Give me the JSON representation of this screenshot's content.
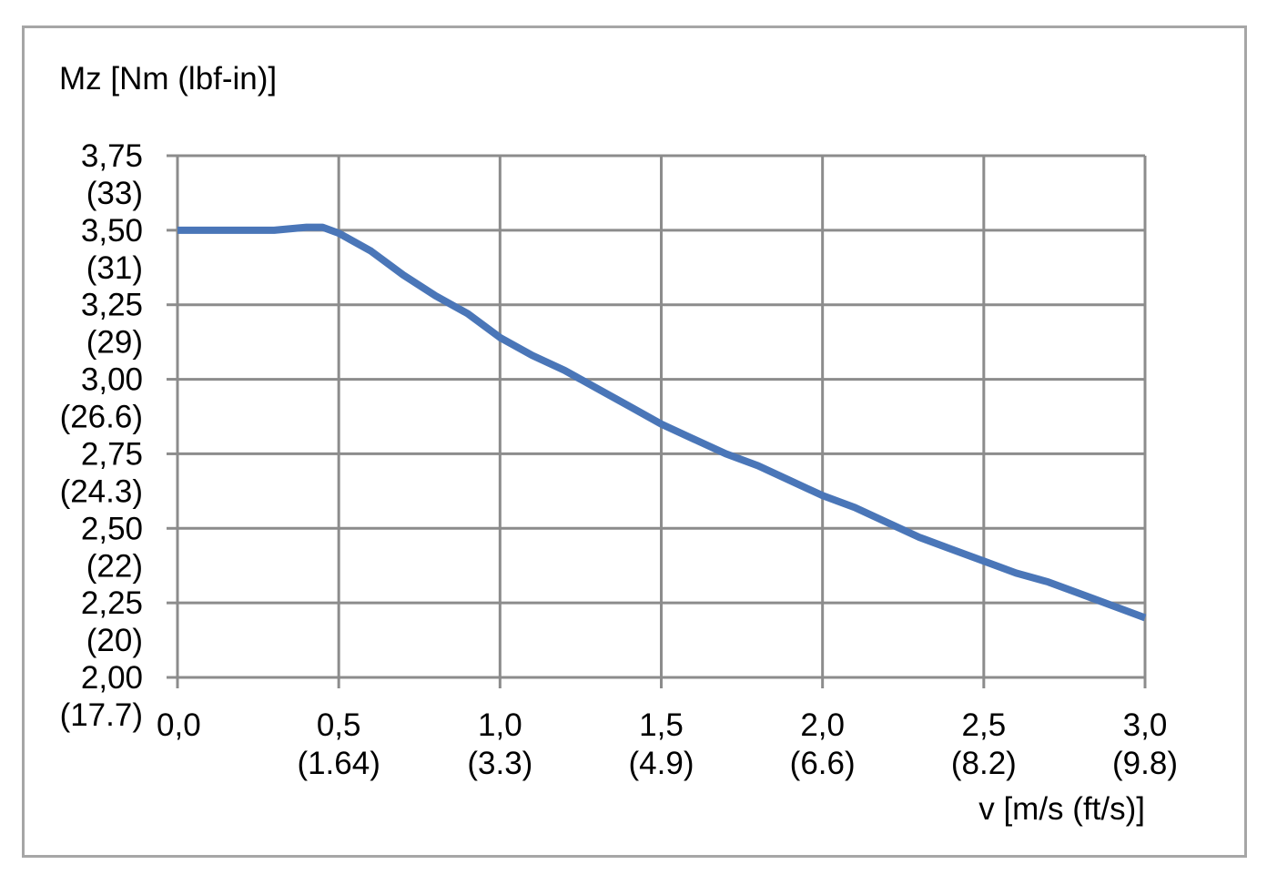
{
  "chart_data": {
    "type": "line",
    "ylabel": "Mz [Nm (lbf-in)]",
    "xlabel": "v [m/s (ft/s)]",
    "xlim": [
      0,
      3.0
    ],
    "ylim": [
      2.0,
      3.75
    ],
    "grid": true,
    "x_ticks": [
      {
        "value": 0.0,
        "label": "0,0",
        "sublabel": ""
      },
      {
        "value": 0.5,
        "label": "0,5",
        "sublabel": "(1.64)"
      },
      {
        "value": 1.0,
        "label": "1,0",
        "sublabel": "(3.3)"
      },
      {
        "value": 1.5,
        "label": "1,5",
        "sublabel": "(4.9)"
      },
      {
        "value": 2.0,
        "label": "2,0",
        "sublabel": "(6.6)"
      },
      {
        "value": 2.5,
        "label": "2,5",
        "sublabel": "(8.2)"
      },
      {
        "value": 3.0,
        "label": "3,0",
        "sublabel": "(9.8)"
      }
    ],
    "y_ticks": [
      {
        "value": 3.75,
        "label": "3,75",
        "sublabel": "(33)"
      },
      {
        "value": 3.5,
        "label": "3,50",
        "sublabel": "(31)"
      },
      {
        "value": 3.25,
        "label": "3,25",
        "sublabel": "(29)"
      },
      {
        "value": 3.0,
        "label": "3,00",
        "sublabel": "(26.6)"
      },
      {
        "value": 2.75,
        "label": "2,75",
        "sublabel": "(24.3)"
      },
      {
        "value": 2.5,
        "label": "2,50",
        "sublabel": "(22)"
      },
      {
        "value": 2.25,
        "label": "2,25",
        "sublabel": "(20)"
      },
      {
        "value": 2.0,
        "label": "2,00",
        "sublabel": "(17.7)"
      }
    ],
    "series": [
      {
        "color": "#4a76b8",
        "x": [
          0.0,
          0.1,
          0.2,
          0.3,
          0.4,
          0.45,
          0.5,
          0.6,
          0.7,
          0.8,
          0.9,
          1.0,
          1.1,
          1.2,
          1.3,
          1.4,
          1.5,
          1.6,
          1.7,
          1.8,
          1.9,
          2.0,
          2.1,
          2.2,
          2.3,
          2.4,
          2.5,
          2.6,
          2.7,
          2.8,
          2.9,
          3.0
        ],
        "y": [
          3.5,
          3.5,
          3.5,
          3.5,
          3.51,
          3.51,
          3.49,
          3.43,
          3.35,
          3.28,
          3.22,
          3.14,
          3.08,
          3.03,
          2.97,
          2.91,
          2.85,
          2.8,
          2.75,
          2.71,
          2.66,
          2.61,
          2.57,
          2.52,
          2.47,
          2.43,
          2.39,
          2.35,
          2.32,
          2.28,
          2.24,
          2.2
        ]
      }
    ]
  }
}
